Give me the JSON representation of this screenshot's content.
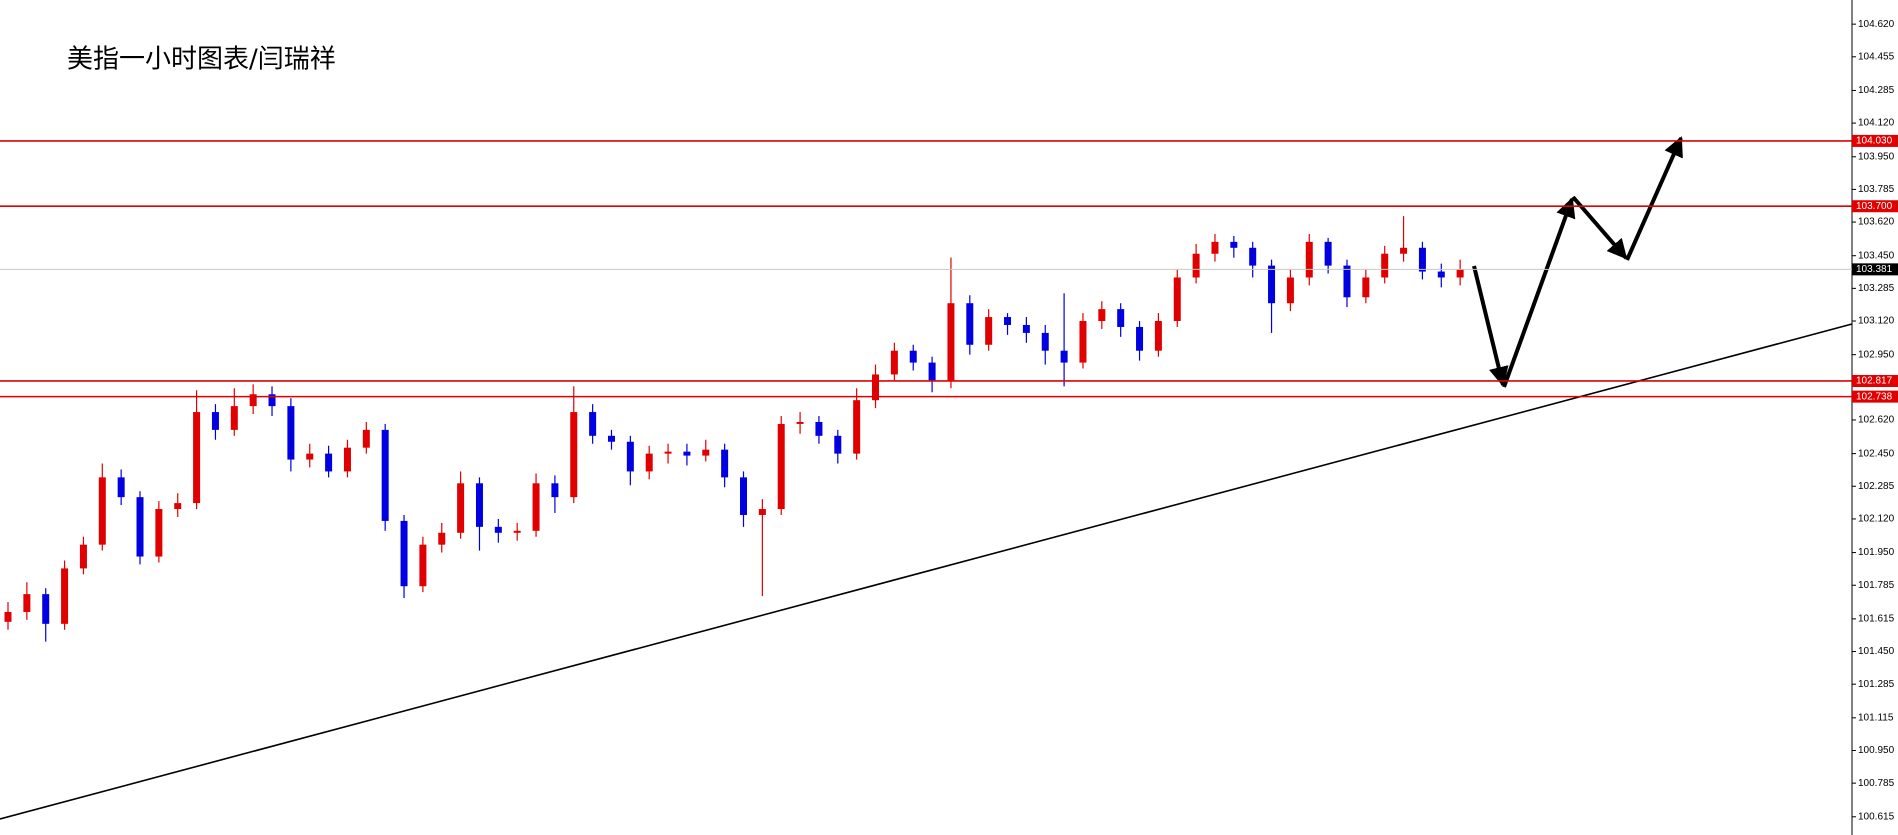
{
  "chart_data": {
    "type": "candlestick",
    "title": "美指一小时图表/闫瑞祥",
    "up_color": "#e00000",
    "down_color": "#0000e0",
    "ylim": [
      100.523,
      104.742
    ],
    "yticks": [
      {
        "value": 104.62,
        "label": "104.620"
      },
      104.455,
      104.285,
      {
        "value": 104.12,
        "label": "104.120"
      },
      {
        "value": 103.95,
        "label": "103.950"
      },
      103.785,
      {
        "value": 103.62,
        "label": "103.620"
      },
      {
        "value": 103.45,
        "label": "103.450"
      },
      103.285,
      {
        "value": 103.12,
        "label": "103.120"
      },
      {
        "value": 102.95,
        "label": "102.950"
      },
      {
        "value": 102.62,
        "label": "102.620"
      },
      {
        "value": 102.45,
        "label": "102.450"
      },
      102.285,
      {
        "value": 102.12,
        "label": "102.120"
      },
      {
        "value": 101.95,
        "label": "101.950"
      },
      101.785,
      101.615,
      {
        "value": 101.45,
        "label": "101.450"
      },
      101.285,
      101.115,
      {
        "value": 100.95,
        "label": "100.950"
      },
      100.785,
      100.615
    ],
    "price_lines": [
      {
        "value": 104.03,
        "label": "104.030",
        "color": "#e00000"
      },
      {
        "value": 103.7,
        "label": "103.700",
        "color": "#e00000"
      },
      {
        "value": 102.817,
        "label": "102.817",
        "color": "#e00000"
      },
      {
        "value": 102.738,
        "label": "102.738",
        "color": "#e00000"
      },
      {
        "value": 103.381,
        "label": "103.381",
        "color": "#000000"
      }
    ],
    "open": [
      101.6,
      101.65,
      101.74,
      101.59,
      101.87,
      101.99,
      102.33,
      102.23,
      101.93,
      102.17,
      102.2,
      102.66,
      102.57,
      102.69,
      102.75,
      102.69,
      102.42,
      102.45,
      102.36,
      102.48,
      102.57,
      102.11,
      101.78,
      101.99,
      102.05,
      102.3,
      102.08,
      102.05,
      102.06,
      102.3,
      102.23,
      102.66,
      102.54,
      102.51,
      102.36,
      102.45,
      102.46,
      102.44,
      102.47,
      102.33,
      102.14,
      102.17,
      102.6,
      102.61,
      102.54,
      102.45,
      102.72,
      102.85,
      102.97,
      102.91,
      102.82,
      103.21,
      103.0,
      103.14,
      103.1,
      103.06,
      102.97,
      102.91,
      103.12,
      103.18,
      103.09,
      102.97,
      103.12,
      103.34,
      103.46,
      103.52,
      103.49,
      103.4,
      103.21,
      103.34,
      103.52,
      103.4,
      103.24,
      103.34,
      103.46,
      103.49,
      103.37,
      103.34
    ],
    "high": [
      101.7,
      101.8,
      101.77,
      101.91,
      102.03,
      102.4,
      102.37,
      102.26,
      102.21,
      102.25,
      102.77,
      102.7,
      102.78,
      102.8,
      102.79,
      102.73,
      102.5,
      102.49,
      102.52,
      102.61,
      102.6,
      102.14,
      102.03,
      102.1,
      102.36,
      102.33,
      102.12,
      102.1,
      102.35,
      102.34,
      102.79,
      102.7,
      102.57,
      102.54,
      102.49,
      102.5,
      102.5,
      102.52,
      102.5,
      102.36,
      102.22,
      102.64,
      102.66,
      102.64,
      102.57,
      102.78,
      102.9,
      103.01,
      103.0,
      102.94,
      103.44,
      103.25,
      103.18,
      103.16,
      103.14,
      103.1,
      103.26,
      103.16,
      103.22,
      103.21,
      103.12,
      103.16,
      103.38,
      103.51,
      103.56,
      103.55,
      103.52,
      103.43,
      103.38,
      103.56,
      103.54,
      103.43,
      103.38,
      103.5,
      103.65,
      103.52,
      103.41,
      103.43
    ],
    "low": [
      101.56,
      101.61,
      101.5,
      101.56,
      101.84,
      101.96,
      102.19,
      101.89,
      101.9,
      102.13,
      102.17,
      102.52,
      102.54,
      102.65,
      102.64,
      102.36,
      102.38,
      102.33,
      102.33,
      102.45,
      102.06,
      101.72,
      101.75,
      101.95,
      102.02,
      101.96,
      102.0,
      102.01,
      102.03,
      102.15,
      102.2,
      102.5,
      102.47,
      102.29,
      102.32,
      102.4,
      102.39,
      102.41,
      102.28,
      102.08,
      101.73,
      102.14,
      102.55,
      102.5,
      102.4,
      102.42,
      102.68,
      102.82,
      102.87,
      102.76,
      102.78,
      102.95,
      102.97,
      103.05,
      103.01,
      102.9,
      102.79,
      102.88,
      103.08,
      103.04,
      102.92,
      102.94,
      103.09,
      103.31,
      103.42,
      103.44,
      103.34,
      103.06,
      103.17,
      103.3,
      103.36,
      103.19,
      103.21,
      103.31,
      103.42,
      103.33,
      103.29,
      103.3
    ],
    "close": [
      101.65,
      101.74,
      101.59,
      101.87,
      101.99,
      102.33,
      102.23,
      101.93,
      102.17,
      102.2,
      102.66,
      102.57,
      102.69,
      102.75,
      102.69,
      102.42,
      102.45,
      102.36,
      102.48,
      102.57,
      102.11,
      101.78,
      101.99,
      102.05,
      102.3,
      102.08,
      102.05,
      102.06,
      102.3,
      102.23,
      102.66,
      102.54,
      102.51,
      102.36,
      102.45,
      102.46,
      102.44,
      102.47,
      102.33,
      102.14,
      102.17,
      102.6,
      102.61,
      102.54,
      102.45,
      102.72,
      102.85,
      102.97,
      102.91,
      102.82,
      103.21,
      103.0,
      103.14,
      103.1,
      103.06,
      102.97,
      102.91,
      103.12,
      103.18,
      103.09,
      102.97,
      103.12,
      103.34,
      103.46,
      103.52,
      103.49,
      103.4,
      103.21,
      103.34,
      103.52,
      103.4,
      103.24,
      103.34,
      103.46,
      103.49,
      103.37,
      103.34,
      103.381
    ]
  }
}
